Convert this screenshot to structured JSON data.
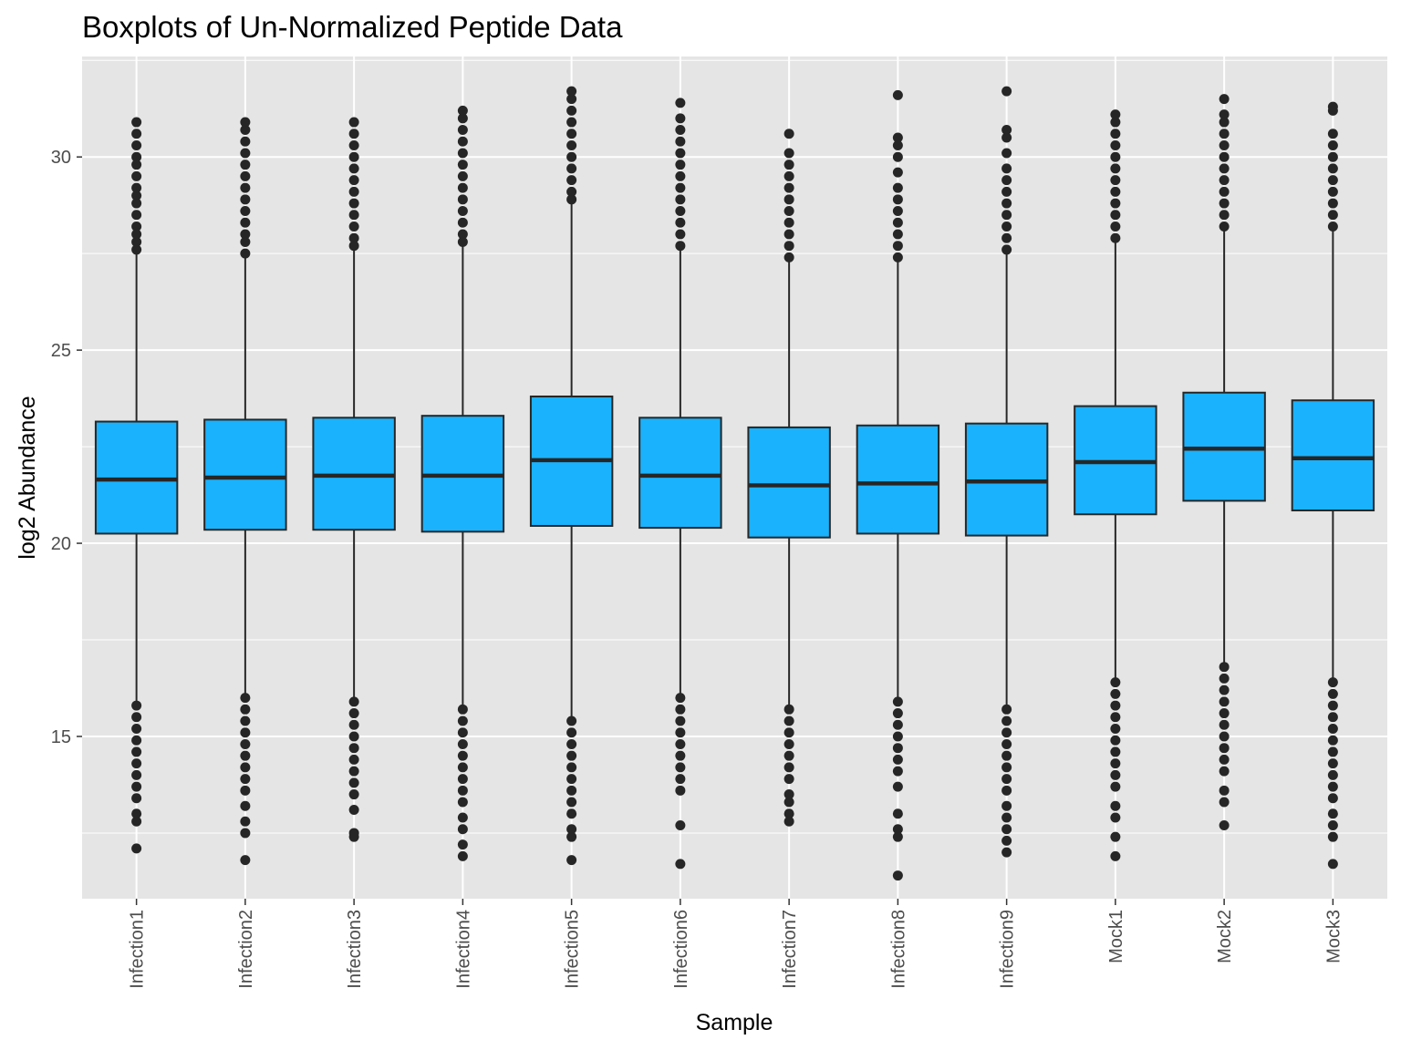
{
  "chart_data": {
    "type": "boxplot",
    "title": "Boxplots of Un-Normalized Peptide Data",
    "xlabel": "Sample",
    "ylabel": "log2 Abundance",
    "ylim": [
      10.8,
      32.6
    ],
    "yticks": [
      15,
      20,
      25,
      30
    ],
    "grid": true,
    "legend": "none",
    "colors": {
      "panel": "#e5e5e5",
      "grid": "#ffffff",
      "box_fill": "#1ab2fc",
      "box_edge": "#262626",
      "point": "#262626",
      "tick_text": "#4d4d4d"
    },
    "categories": [
      "Infection1",
      "Infection2",
      "Infection3",
      "Infection4",
      "Infection5",
      "Infection6",
      "Infection7",
      "Infection8",
      "Infection9",
      "Mock1",
      "Mock2",
      "Mock3"
    ],
    "boxes": [
      {
        "q1": 20.25,
        "median": 21.65,
        "q3": 23.15,
        "whisker_low": 15.9,
        "whisker_high": 27.5,
        "outliers_high": [
          27.6,
          27.8,
          28.0,
          28.2,
          28.5,
          28.8,
          29.0,
          29.2,
          29.5,
          29.8,
          30.0,
          30.3,
          30.6,
          30.9
        ],
        "outliers_low": [
          15.8,
          15.5,
          15.2,
          14.9,
          14.6,
          14.3,
          14.0,
          13.7,
          13.4,
          13.0,
          12.8,
          12.1
        ]
      },
      {
        "q1": 20.35,
        "median": 21.7,
        "q3": 23.2,
        "whisker_low": 16.1,
        "whisker_high": 27.4,
        "outliers_high": [
          27.5,
          27.8,
          28.0,
          28.3,
          28.6,
          28.9,
          29.2,
          29.5,
          29.8,
          30.1,
          30.4,
          30.7,
          30.9
        ],
        "outliers_low": [
          16.0,
          15.7,
          15.4,
          15.1,
          14.8,
          14.5,
          14.2,
          13.9,
          13.6,
          13.2,
          12.8,
          12.5,
          11.8
        ]
      },
      {
        "q1": 20.35,
        "median": 21.75,
        "q3": 23.25,
        "whisker_low": 16.0,
        "whisker_high": 27.6,
        "outliers_high": [
          27.7,
          27.9,
          28.2,
          28.5,
          28.8,
          29.1,
          29.4,
          29.7,
          30.0,
          30.3,
          30.6,
          30.9
        ],
        "outliers_low": [
          15.9,
          15.6,
          15.3,
          15.0,
          14.7,
          14.4,
          14.1,
          13.8,
          13.5,
          13.1,
          12.5,
          12.4
        ]
      },
      {
        "q1": 20.3,
        "median": 21.75,
        "q3": 23.3,
        "whisker_low": 15.8,
        "whisker_high": 27.7,
        "outliers_high": [
          27.8,
          28.0,
          28.3,
          28.6,
          28.9,
          29.2,
          29.5,
          29.8,
          30.1,
          30.4,
          30.7,
          31.0,
          31.2
        ],
        "outliers_low": [
          15.7,
          15.4,
          15.1,
          14.8,
          14.5,
          14.2,
          13.9,
          13.6,
          13.3,
          12.9,
          12.6,
          12.2,
          11.9
        ]
      },
      {
        "q1": 20.45,
        "median": 22.15,
        "q3": 23.8,
        "whisker_low": 15.5,
        "whisker_high": 28.8,
        "outliers_high": [
          28.9,
          29.1,
          29.4,
          29.7,
          30.0,
          30.3,
          30.6,
          30.9,
          31.2,
          31.5,
          31.7
        ],
        "outliers_low": [
          15.4,
          15.1,
          14.8,
          14.5,
          14.2,
          13.9,
          13.6,
          13.3,
          13.0,
          12.6,
          12.4,
          11.8
        ]
      },
      {
        "q1": 20.4,
        "median": 21.75,
        "q3": 23.25,
        "whisker_low": 16.1,
        "whisker_high": 27.6,
        "outliers_high": [
          27.7,
          28.0,
          28.3,
          28.6,
          28.9,
          29.2,
          29.5,
          29.8,
          30.1,
          30.4,
          30.7,
          31.0,
          31.4
        ],
        "outliers_low": [
          16.0,
          15.7,
          15.4,
          15.1,
          14.8,
          14.5,
          14.2,
          13.9,
          13.6,
          12.7,
          11.7
        ]
      },
      {
        "q1": 20.15,
        "median": 21.5,
        "q3": 23.0,
        "whisker_low": 15.8,
        "whisker_high": 27.3,
        "outliers_high": [
          27.4,
          27.7,
          28.0,
          28.3,
          28.6,
          28.9,
          29.2,
          29.5,
          29.8,
          30.1,
          30.6
        ],
        "outliers_low": [
          15.7,
          15.4,
          15.1,
          14.8,
          14.5,
          14.2,
          13.9,
          13.5,
          13.3,
          13.0,
          12.8
        ]
      },
      {
        "q1": 20.25,
        "median": 21.55,
        "q3": 23.05,
        "whisker_low": 16.0,
        "whisker_high": 27.3,
        "outliers_high": [
          27.4,
          27.7,
          28.0,
          28.3,
          28.6,
          28.9,
          29.2,
          29.6,
          30.0,
          30.3,
          30.5,
          31.6
        ],
        "outliers_low": [
          15.9,
          15.6,
          15.3,
          15.0,
          14.7,
          14.4,
          14.1,
          13.7,
          13.0,
          12.6,
          12.4,
          11.4
        ]
      },
      {
        "q1": 20.2,
        "median": 21.6,
        "q3": 23.1,
        "whisker_low": 15.8,
        "whisker_high": 27.5,
        "outliers_high": [
          27.6,
          27.9,
          28.2,
          28.5,
          28.8,
          29.1,
          29.4,
          29.7,
          30.1,
          30.5,
          30.7,
          31.7
        ],
        "outliers_low": [
          15.7,
          15.4,
          15.1,
          14.8,
          14.5,
          14.2,
          13.9,
          13.6,
          13.2,
          12.9,
          12.6,
          12.3,
          12.0
        ]
      },
      {
        "q1": 20.75,
        "median": 22.1,
        "q3": 23.55,
        "whisker_low": 16.5,
        "whisker_high": 27.8,
        "outliers_high": [
          27.9,
          28.2,
          28.5,
          28.8,
          29.1,
          29.4,
          29.7,
          30.0,
          30.3,
          30.6,
          30.9,
          31.1
        ],
        "outliers_low": [
          16.4,
          16.1,
          15.8,
          15.5,
          15.2,
          14.9,
          14.6,
          14.3,
          14.0,
          13.7,
          13.2,
          12.9,
          12.4,
          11.9
        ]
      },
      {
        "q1": 21.1,
        "median": 22.45,
        "q3": 23.9,
        "whisker_low": 16.9,
        "whisker_high": 28.1,
        "outliers_high": [
          28.2,
          28.5,
          28.8,
          29.1,
          29.4,
          29.7,
          30.0,
          30.3,
          30.6,
          30.9,
          31.1,
          31.5
        ],
        "outliers_low": [
          16.8,
          16.5,
          16.2,
          15.9,
          15.6,
          15.3,
          15.0,
          14.7,
          14.4,
          14.1,
          13.6,
          13.3,
          12.7
        ]
      },
      {
        "q1": 20.85,
        "median": 22.2,
        "q3": 23.7,
        "whisker_low": 16.5,
        "whisker_high": 28.1,
        "outliers_high": [
          28.2,
          28.5,
          28.8,
          29.1,
          29.4,
          29.7,
          30.0,
          30.3,
          30.6,
          31.2,
          31.3
        ],
        "outliers_low": [
          16.4,
          16.1,
          15.8,
          15.5,
          15.2,
          14.9,
          14.6,
          14.3,
          14.0,
          13.7,
          13.4,
          13.0,
          12.7,
          12.4,
          11.7
        ]
      }
    ]
  }
}
